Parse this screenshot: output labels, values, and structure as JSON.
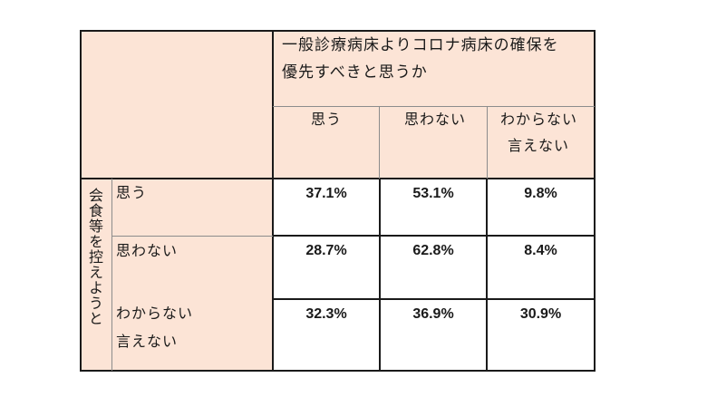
{
  "header": {
    "question_line1": "一般診療病床よりコロナ病床の確保を",
    "question_line2": "優先すべきと思うか",
    "columns": [
      "思う",
      "思わない",
      "わからない",
      "言えない"
    ]
  },
  "side": {
    "group_label": "会食等を控えようと",
    "rows": [
      "思う",
      "思わない",
      "わからない",
      "言えない"
    ]
  },
  "values": [
    [
      "37.1%",
      "53.1%",
      "9.8%"
    ],
    [
      "28.7%",
      "62.8%",
      "8.4%"
    ],
    [
      "32.3%",
      "36.9%",
      "30.9%"
    ]
  ],
  "colors": {
    "header_fill": "#fce4d6",
    "border": "#1a1a1a"
  }
}
